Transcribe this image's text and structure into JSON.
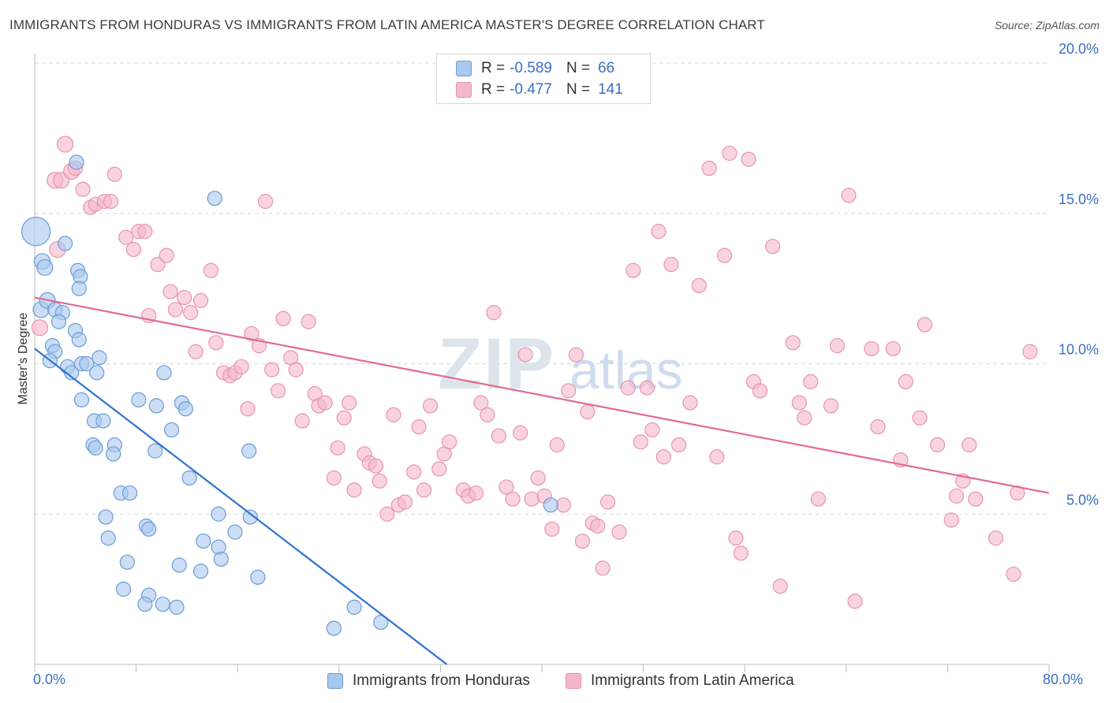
{
  "title": "IMMIGRANTS FROM HONDURAS VS IMMIGRANTS FROM LATIN AMERICA MASTER'S DEGREE CORRELATION CHART",
  "source": "Source: ZipAtlas.com",
  "watermark": "ZIPatlas",
  "legend": {
    "honduras": {
      "r_label": "R =",
      "r_value": "-0.589",
      "n_label": "N =",
      "n_value": "66"
    },
    "latin": {
      "r_label": "R =",
      "r_value": "-0.477",
      "n_label": "N =",
      "n_value": "141"
    }
  },
  "colors": {
    "blue_fill": "#a9c8ef",
    "blue_stroke": "#6a9bd8",
    "blue_line": "#2f74d0",
    "pink_fill": "#f5b8cb",
    "pink_stroke": "#e893ae",
    "pink_line": "#e06b93",
    "axis_text": "#3a6fc4",
    "grid": "#d9d9d9"
  },
  "chart_data": {
    "type": "scatter",
    "xlabel": "",
    "ylabel": "Master's Degree",
    "xlim": [
      0,
      80
    ],
    "ylim": [
      0,
      20
    ],
    "x_tick_labels": {
      "left": "0.0%",
      "right": "80.0%"
    },
    "y_ticks": [
      {
        "value": 5,
        "label": "5.0%"
      },
      {
        "value": 10,
        "label": "10.0%"
      },
      {
        "value": 15,
        "label": "15.0%"
      },
      {
        "value": 20,
        "label": "20.0%"
      }
    ],
    "legend_position": "top-center",
    "series": [
      {
        "name": "Immigrants from Honduras",
        "color": "#a9c8ef",
        "trend": {
          "x": [
            0,
            32.5
          ],
          "y": [
            10.5,
            0
          ]
        },
        "points": [
          [
            0.1,
            14.4,
            18
          ],
          [
            0.6,
            13.4,
            10
          ],
          [
            0.8,
            13.2,
            10
          ],
          [
            0.5,
            11.8,
            10
          ],
          [
            1.0,
            12.1,
            10
          ],
          [
            1.6,
            11.8,
            9
          ],
          [
            2.2,
            11.7,
            9
          ],
          [
            1.9,
            11.4,
            9
          ],
          [
            3.3,
            16.7,
            9
          ],
          [
            2.4,
            14.0,
            9
          ],
          [
            3.4,
            13.1,
            9
          ],
          [
            3.6,
            12.9,
            9
          ],
          [
            3.5,
            12.5,
            9
          ],
          [
            14.2,
            15.5,
            9
          ],
          [
            1.4,
            10.6,
            9
          ],
          [
            1.6,
            10.4,
            9
          ],
          [
            3.2,
            11.1,
            9
          ],
          [
            3.5,
            10.8,
            9
          ],
          [
            1.2,
            10.1,
            9
          ],
          [
            2.6,
            9.9,
            9
          ],
          [
            2.9,
            9.7,
            9
          ],
          [
            3.7,
            10.0,
            9
          ],
          [
            4.1,
            10.0,
            9
          ],
          [
            5.1,
            10.2,
            9
          ],
          [
            4.9,
            9.7,
            9
          ],
          [
            10.2,
            9.7,
            9
          ],
          [
            3.7,
            8.8,
            9
          ],
          [
            8.2,
            8.8,
            9
          ],
          [
            9.6,
            8.6,
            9
          ],
          [
            11.6,
            8.7,
            9
          ],
          [
            11.9,
            8.5,
            9
          ],
          [
            4.7,
            8.1,
            9
          ],
          [
            5.4,
            8.1,
            9
          ],
          [
            10.8,
            7.8,
            9
          ],
          [
            4.6,
            7.3,
            9
          ],
          [
            4.8,
            7.2,
            9
          ],
          [
            6.3,
            7.3,
            9
          ],
          [
            6.2,
            7.0,
            9
          ],
          [
            9.5,
            7.1,
            9
          ],
          [
            16.9,
            7.1,
            9
          ],
          [
            12.2,
            6.2,
            9
          ],
          [
            6.8,
            5.7,
            9
          ],
          [
            7.5,
            5.7,
            9
          ],
          [
            14.5,
            5.0,
            9
          ],
          [
            17.0,
            4.9,
            9
          ],
          [
            40.7,
            5.3,
            9
          ],
          [
            5.6,
            4.9,
            9
          ],
          [
            8.8,
            4.6,
            9
          ],
          [
            9.0,
            4.5,
            9
          ],
          [
            5.8,
            4.2,
            9
          ],
          [
            13.3,
            4.1,
            9
          ],
          [
            14.5,
            3.9,
            9
          ],
          [
            15.8,
            4.4,
            9
          ],
          [
            7.3,
            3.4,
            9
          ],
          [
            11.4,
            3.3,
            9
          ],
          [
            13.1,
            3.1,
            9
          ],
          [
            14.7,
            3.5,
            9
          ],
          [
            17.6,
            2.9,
            9
          ],
          [
            7.0,
            2.5,
            9
          ],
          [
            9.0,
            2.3,
            9
          ],
          [
            8.7,
            2.0,
            9
          ],
          [
            10.1,
            2.0,
            9
          ],
          [
            11.2,
            1.9,
            9
          ],
          [
            25.2,
            1.9,
            9
          ],
          [
            23.6,
            1.2,
            9
          ],
          [
            27.3,
            1.4,
            9
          ]
        ]
      },
      {
        "name": "Immigrants from Latin America",
        "color": "#f5b8cb",
        "trend": {
          "x": [
            0,
            80
          ],
          "y": [
            12.2,
            5.7
          ]
        },
        "points": [
          [
            0.4,
            11.2,
            10
          ],
          [
            1.8,
            13.8,
            10
          ],
          [
            1.6,
            16.1,
            10
          ],
          [
            2.1,
            16.1,
            10
          ],
          [
            2.4,
            17.3,
            10
          ],
          [
            2.9,
            16.4,
            10
          ],
          [
            3.2,
            16.5,
            9
          ],
          [
            3.8,
            15.8,
            9
          ],
          [
            4.4,
            15.2,
            9
          ],
          [
            4.8,
            15.3,
            9
          ],
          [
            5.5,
            15.4,
            9
          ],
          [
            6.0,
            15.4,
            9
          ],
          [
            6.3,
            16.3,
            9
          ],
          [
            7.2,
            14.2,
            9
          ],
          [
            7.8,
            13.8,
            9
          ],
          [
            8.2,
            14.4,
            9
          ],
          [
            8.7,
            14.4,
            9
          ],
          [
            9.0,
            11.6,
            9
          ],
          [
            9.7,
            13.3,
            9
          ],
          [
            10.4,
            13.6,
            9
          ],
          [
            10.7,
            12.4,
            9
          ],
          [
            11.1,
            11.8,
            9
          ],
          [
            11.8,
            12.2,
            9
          ],
          [
            12.3,
            11.7,
            9
          ],
          [
            12.7,
            10.4,
            9
          ],
          [
            13.1,
            12.1,
            9
          ],
          [
            13.9,
            13.1,
            9
          ],
          [
            14.3,
            10.7,
            9
          ],
          [
            14.9,
            9.7,
            9
          ],
          [
            15.4,
            9.6,
            9
          ],
          [
            15.8,
            9.7,
            9
          ],
          [
            16.3,
            9.9,
            9
          ],
          [
            16.8,
            8.5,
            9
          ],
          [
            17.1,
            11.0,
            9
          ],
          [
            17.7,
            10.6,
            9
          ],
          [
            18.2,
            15.4,
            9
          ],
          [
            18.7,
            9.8,
            9
          ],
          [
            19.2,
            9.1,
            9
          ],
          [
            19.6,
            11.5,
            9
          ],
          [
            20.2,
            10.2,
            9
          ],
          [
            20.6,
            9.8,
            9
          ],
          [
            21.1,
            8.1,
            9
          ],
          [
            21.6,
            11.4,
            9
          ],
          [
            22.1,
            9.0,
            9
          ],
          [
            22.4,
            8.6,
            9
          ],
          [
            22.9,
            8.7,
            9
          ],
          [
            23.6,
            6.2,
            9
          ],
          [
            23.9,
            7.2,
            9
          ],
          [
            24.4,
            8.2,
            9
          ],
          [
            24.8,
            8.7,
            9
          ],
          [
            25.2,
            5.8,
            9
          ],
          [
            26.0,
            7.0,
            9
          ],
          [
            26.4,
            6.7,
            9
          ],
          [
            26.9,
            6.6,
            9
          ],
          [
            27.2,
            6.1,
            9
          ],
          [
            27.8,
            5.0,
            9
          ],
          [
            28.3,
            8.3,
            9
          ],
          [
            28.7,
            5.3,
            9
          ],
          [
            29.2,
            5.4,
            9
          ],
          [
            29.9,
            6.4,
            9
          ],
          [
            30.3,
            7.9,
            9
          ],
          [
            30.7,
            5.8,
            9
          ],
          [
            31.2,
            8.6,
            9
          ],
          [
            31.9,
            6.5,
            9
          ],
          [
            32.3,
            7.0,
            9
          ],
          [
            32.7,
            7.4,
            9
          ],
          [
            33.8,
            5.8,
            9
          ],
          [
            34.2,
            5.6,
            9
          ],
          [
            34.8,
            5.7,
            9
          ],
          [
            35.2,
            8.7,
            9
          ],
          [
            35.7,
            8.3,
            9
          ],
          [
            36.2,
            11.7,
            9
          ],
          [
            36.6,
            7.6,
            9
          ],
          [
            37.2,
            5.9,
            9
          ],
          [
            37.7,
            5.5,
            9
          ],
          [
            38.3,
            7.7,
            9
          ],
          [
            38.7,
            10.3,
            9
          ],
          [
            39.2,
            5.5,
            9
          ],
          [
            39.7,
            6.2,
            9
          ],
          [
            40.2,
            5.6,
            9
          ],
          [
            40.8,
            4.5,
            9
          ],
          [
            41.2,
            7.3,
            9
          ],
          [
            41.7,
            5.3,
            9
          ],
          [
            42.1,
            9.1,
            9
          ],
          [
            42.7,
            10.3,
            9
          ],
          [
            43.2,
            4.1,
            9
          ],
          [
            43.6,
            8.4,
            9
          ],
          [
            44.0,
            4.7,
            9
          ],
          [
            44.4,
            4.6,
            9
          ],
          [
            44.8,
            3.2,
            9
          ],
          [
            45.2,
            5.4,
            9
          ],
          [
            46.1,
            4.4,
            9
          ],
          [
            46.8,
            9.2,
            9
          ],
          [
            47.2,
            13.1,
            9
          ],
          [
            47.8,
            7.4,
            9
          ],
          [
            48.3,
            9.2,
            9
          ],
          [
            48.7,
            7.8,
            9
          ],
          [
            49.2,
            14.4,
            9
          ],
          [
            49.6,
            6.9,
            9
          ],
          [
            50.2,
            13.3,
            9
          ],
          [
            50.8,
            7.3,
            9
          ],
          [
            51.7,
            8.7,
            9
          ],
          [
            52.4,
            12.6,
            9
          ],
          [
            53.2,
            16.5,
            9
          ],
          [
            53.8,
            6.9,
            9
          ],
          [
            54.4,
            13.6,
            9
          ],
          [
            54.8,
            17.0,
            9
          ],
          [
            55.3,
            4.2,
            9
          ],
          [
            55.7,
            3.7,
            9
          ],
          [
            56.3,
            16.8,
            9
          ],
          [
            56.7,
            9.4,
            9
          ],
          [
            57.2,
            9.1,
            9
          ],
          [
            58.2,
            13.9,
            9
          ],
          [
            58.8,
            2.6,
            9
          ],
          [
            59.8,
            10.7,
            9
          ],
          [
            60.3,
            8.7,
            9
          ],
          [
            60.7,
            8.2,
            9
          ],
          [
            61.2,
            9.4,
            9
          ],
          [
            61.8,
            5.5,
            9
          ],
          [
            62.8,
            8.6,
            9
          ],
          [
            63.3,
            10.6,
            9
          ],
          [
            64.2,
            15.6,
            9
          ],
          [
            64.7,
            2.1,
            9
          ],
          [
            66.0,
            10.5,
            9
          ],
          [
            66.5,
            7.9,
            9
          ],
          [
            67.7,
            10.5,
            9
          ],
          [
            68.3,
            6.8,
            9
          ],
          [
            68.7,
            9.4,
            9
          ],
          [
            69.8,
            8.2,
            9
          ],
          [
            70.2,
            11.3,
            9
          ],
          [
            71.2,
            7.3,
            9
          ],
          [
            72.3,
            4.8,
            9
          ],
          [
            72.7,
            5.6,
            9
          ],
          [
            73.2,
            6.1,
            9
          ],
          [
            73.7,
            7.3,
            9
          ],
          [
            74.2,
            5.5,
            9
          ],
          [
            75.8,
            4.2,
            9
          ],
          [
            77.2,
            3.0,
            9
          ],
          [
            77.5,
            5.7,
            9
          ],
          [
            78.5,
            10.4,
            9
          ]
        ]
      }
    ]
  }
}
